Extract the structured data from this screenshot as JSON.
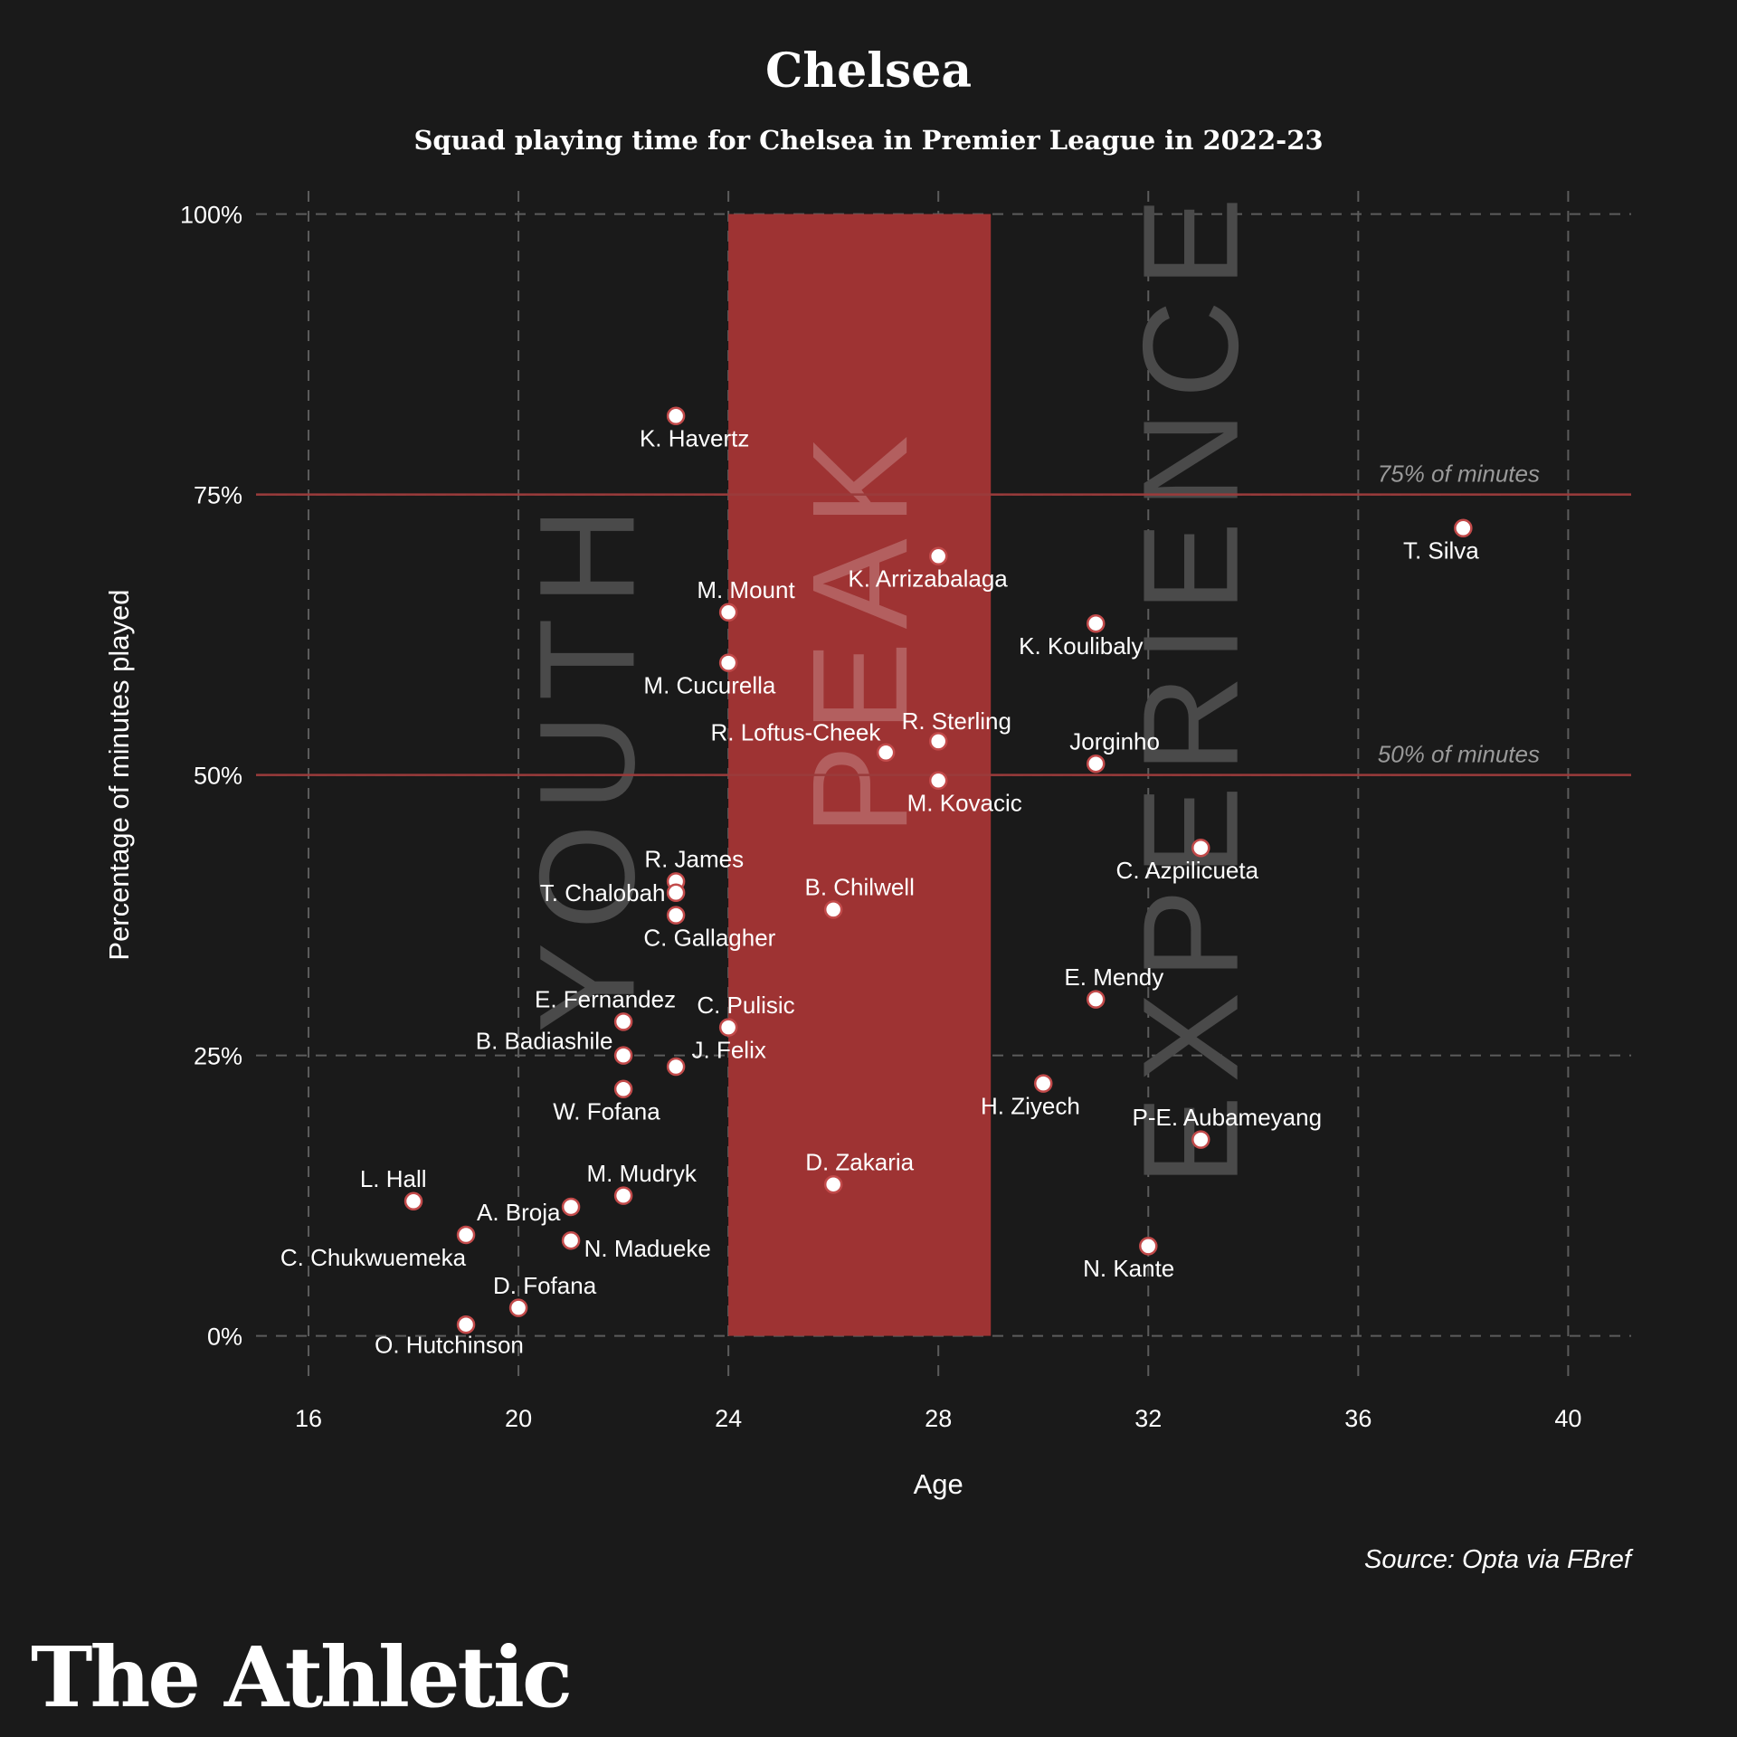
{
  "chart_data": {
    "type": "scatter",
    "title": "Chelsea",
    "subtitle": "Squad playing time for Chelsea in Premier League in 2022-23",
    "xlabel": "Age",
    "ylabel": "Percentage of minutes played",
    "xlim": [
      15,
      41.2
    ],
    "ylim": [
      -6,
      104
    ],
    "xticks": [
      16,
      20,
      24,
      28,
      32,
      36,
      40
    ],
    "yticks": [
      {
        "value": 0,
        "label": "0%"
      },
      {
        "value": 25,
        "label": "25%"
      },
      {
        "value": 50,
        "label": "50%"
      },
      {
        "value": 75,
        "label": "75%"
      },
      {
        "value": 100,
        "label": "100%"
      }
    ],
    "grid": true,
    "peak_band": {
      "x_start": 24,
      "x_end": 29,
      "y_start": 0,
      "y_end": 100,
      "color": "#9e3333"
    },
    "zones": [
      {
        "label": "YOUTH",
        "x": 21.3,
        "y": 51
      },
      {
        "label": "PEAK",
        "x": 26.5,
        "y": 63
      },
      {
        "label": "EXPERIENCE",
        "x": 32.8,
        "y": 58
      }
    ],
    "reference_lines": [
      {
        "y": 75,
        "label": "75% of minutes"
      },
      {
        "y": 50,
        "label": "50% of minutes"
      }
    ],
    "colors": {
      "background": "#1a1a1a",
      "grid": "#5c5c5c",
      "reference_line": "#9a3b3b",
      "point_fill": "#ffffff",
      "point_stroke": "#c24a4a",
      "zone_text": "#4a4a4a"
    },
    "points": [
      {
        "name": "K. Havertz",
        "x": 23,
        "y": 82,
        "anchor": "end",
        "dx": 1.4,
        "dy": -2
      },
      {
        "name": "T. Silva",
        "x": 38,
        "y": 72,
        "anchor": "end",
        "dx": 0.3,
        "dy": -2
      },
      {
        "name": "K. Arrizabalaga",
        "x": 28,
        "y": 69.5,
        "anchor": "middle",
        "dx": -0.2,
        "dy": -2
      },
      {
        "name": "M. Mount",
        "x": 24,
        "y": 64.5,
        "anchor": "start",
        "dx": -0.6,
        "dy": 2
      },
      {
        "name": "K. Koulibaly",
        "x": 31,
        "y": 63.5,
        "anchor": "end",
        "dx": 0.9,
        "dy": -2
      },
      {
        "name": "M. Cucurella",
        "x": 24,
        "y": 60,
        "anchor": "end",
        "dx": 0.9,
        "dy": -2
      },
      {
        "name": "R. Loftus-Cheek",
        "x": 27,
        "y": 52,
        "anchor": "end",
        "dx": -0.1,
        "dy": 1.8
      },
      {
        "name": "R. Sterling",
        "x": 28,
        "y": 53,
        "anchor": "start",
        "dx": -0.7,
        "dy": 1.8
      },
      {
        "name": "Jorginho",
        "x": 31,
        "y": 51,
        "anchor": "start",
        "dx": -0.5,
        "dy": 2
      },
      {
        "name": "M. Kovacic",
        "x": 28,
        "y": 49.5,
        "anchor": "middle",
        "dx": 0.5,
        "dy": -2
      },
      {
        "name": "C. Azpilicueta",
        "x": 33,
        "y": 43.5,
        "anchor": "end",
        "dx": 1.1,
        "dy": -2
      },
      {
        "name": "R. James",
        "x": 23,
        "y": 40.5,
        "anchor": "start",
        "dx": -0.6,
        "dy": 2
      },
      {
        "name": "T. Chalobah",
        "x": 23,
        "y": 39.5,
        "anchor": "end",
        "dx": -0.2,
        "dy": 0
      },
      {
        "name": "C. Gallagher",
        "x": 23,
        "y": 37.5,
        "anchor": "end",
        "dx": 1.9,
        "dy": -2
      },
      {
        "name": "B. Chilwell",
        "x": 26,
        "y": 38,
        "anchor": "middle",
        "dx": 0.5,
        "dy": 2
      },
      {
        "name": "E. Mendy",
        "x": 31,
        "y": 30,
        "anchor": "start",
        "dx": -0.6,
        "dy": 2
      },
      {
        "name": "E. Fernandez",
        "x": 22,
        "y": 28,
        "anchor": "end",
        "dx": 1.0,
        "dy": 2
      },
      {
        "name": "C. Pulisic",
        "x": 24,
        "y": 27.5,
        "anchor": "start",
        "dx": -0.6,
        "dy": 2
      },
      {
        "name": "B. Badiashile",
        "x": 22,
        "y": 25,
        "anchor": "end",
        "dx": -0.2,
        "dy": 1.3
      },
      {
        "name": "J. Felix",
        "x": 23,
        "y": 24,
        "anchor": "start",
        "dx": 0.3,
        "dy": 1.5
      },
      {
        "name": "H. Ziyech",
        "x": 30,
        "y": 22.5,
        "anchor": "end",
        "dx": 0.7,
        "dy": -2
      },
      {
        "name": "W. Fofana",
        "x": 22,
        "y": 22,
        "anchor": "end",
        "dx": 0.7,
        "dy": -2
      },
      {
        "name": "P-E. Aubameyang",
        "x": 33,
        "y": 17.5,
        "anchor": "middle",
        "dx": 0.5,
        "dy": 2
      },
      {
        "name": "D. Zakaria",
        "x": 26,
        "y": 13.5,
        "anchor": "middle",
        "dx": 0.5,
        "dy": 2
      },
      {
        "name": "M. Mudryk",
        "x": 22,
        "y": 12.5,
        "anchor": "start",
        "dx": -0.7,
        "dy": 2
      },
      {
        "name": "L. Hall",
        "x": 18,
        "y": 12,
        "anchor": "end",
        "dx": 0.25,
        "dy": 2
      },
      {
        "name": "A. Broja",
        "x": 21,
        "y": 11.5,
        "anchor": "end",
        "dx": -0.2,
        "dy": -0.5
      },
      {
        "name": "C. Chukwuemeka",
        "x": 19,
        "y": 9,
        "anchor": "end",
        "dx": 0,
        "dy": -2
      },
      {
        "name": "N. Madueke",
        "x": 21,
        "y": 8.5,
        "anchor": "start",
        "dx": 0.25,
        "dy": -0.7
      },
      {
        "name": "N. Kante",
        "x": 32,
        "y": 8,
        "anchor": "end",
        "dx": 0.5,
        "dy": -2
      },
      {
        "name": "D. Fofana",
        "x": 20,
        "y": 2.5,
        "anchor": "middle",
        "dx": 0.5,
        "dy": 2
      },
      {
        "name": "O. Hutchinson",
        "x": 19,
        "y": 1,
        "anchor": "end",
        "dx": 1.1,
        "dy": -1.8
      }
    ]
  },
  "source": "Source: Opta via FBref",
  "brand": "The Athletic"
}
